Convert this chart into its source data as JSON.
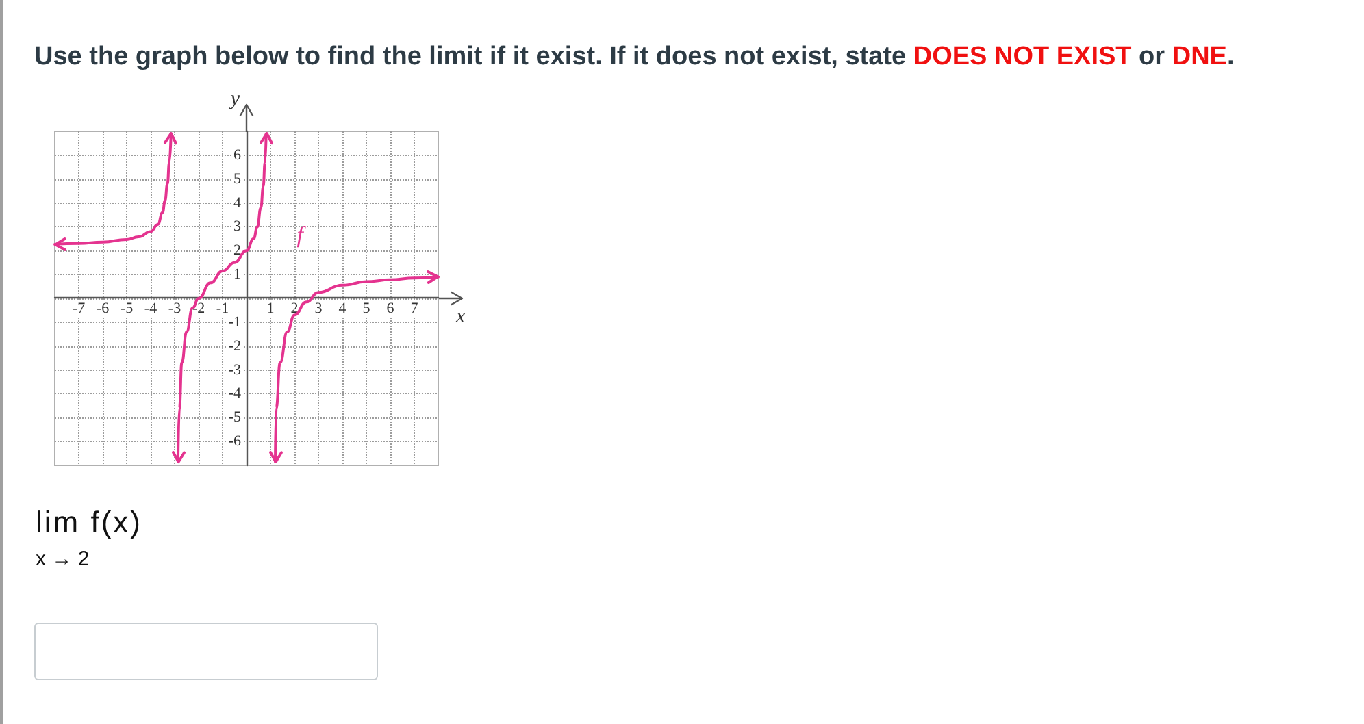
{
  "chart_data": {
    "type": "line",
    "title": "Use the graph below to find the limit if it exist. If it does not exist, state DOES NOT EXIST or DNE.",
    "xlabel": "x",
    "ylabel": "y",
    "series": [
      {
        "name": "f",
        "color": "#e4338f",
        "x": [
          -8,
          -7,
          -6,
          -5,
          -4.5,
          -4,
          -3.7,
          -3.5,
          -3.4,
          -3.3,
          -3.22,
          -3.15,
          -3,
          -2.86,
          -2.8,
          -2.7,
          -2.5,
          -2.25,
          -2,
          -1.5,
          -1,
          -0.5,
          0,
          0.3,
          0.45,
          0.6,
          0.7,
          0.77,
          0.82,
          1,
          1.2,
          1.24,
          1.4,
          1.7,
          2,
          2.5,
          3,
          4,
          5,
          6,
          7,
          8
        ],
        "values": [
          2.27,
          2.3,
          2.36,
          2.47,
          2.58,
          2.8,
          3.1,
          3.6,
          4.1,
          4.8,
          5.7,
          6.9,
          null,
          -6.85,
          -4.6,
          -2.7,
          -1.4,
          -0.4,
          0,
          0.65,
          1.15,
          1.5,
          2,
          2.5,
          3,
          3.8,
          4.7,
          5.7,
          6.9,
          null,
          -6.85,
          -4.6,
          -2.7,
          -1.4,
          -0.7,
          -0.15,
          0.25,
          0.55,
          0.7,
          0.78,
          0.85,
          0.9
        ]
      }
    ],
    "xlim": [
      -8,
      8
    ],
    "ylim": [
      -7,
      7
    ],
    "xticks": [
      -7,
      -6,
      -5,
      -4,
      -3,
      -2,
      -1,
      {
        "value": 0,
        "label": null
      },
      1,
      2,
      3,
      4,
      5,
      6,
      7
    ],
    "yticks": [
      -6,
      -5,
      -4,
      -3,
      -2,
      -1,
      {
        "value": 0,
        "label": null
      },
      1,
      2,
      3,
      4,
      5,
      6
    ],
    "grid": true,
    "marker": "none",
    "annotations": [
      "lim f(x)",
      "x → 2"
    ]
  }
}
